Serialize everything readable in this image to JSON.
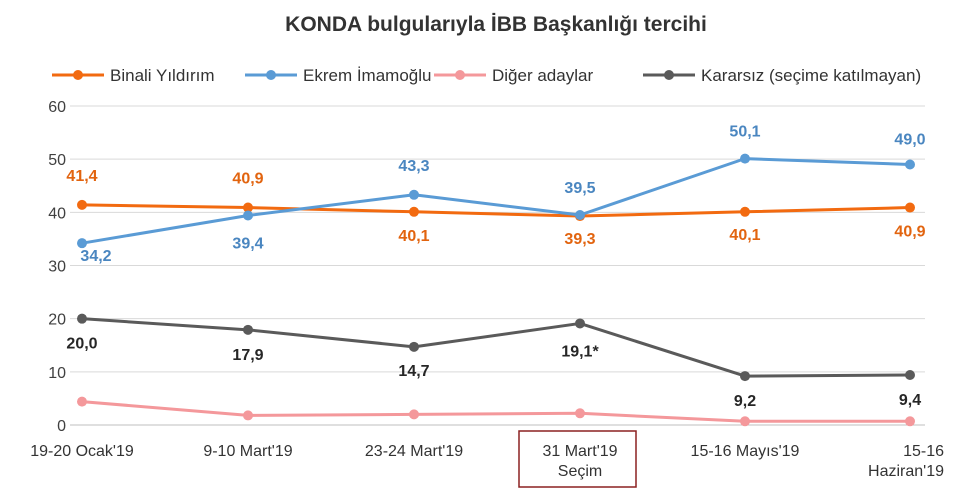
{
  "chart_data": {
    "type": "line",
    "title": "KONDA bulgularıyla İBB Başkanlığı tercihi",
    "categories": [
      [
        "19-20 Ocak'19"
      ],
      [
        "9-10 Mart'19"
      ],
      [
        "23-24 Mart'19"
      ],
      [
        "31 Mart'19",
        "Seçim"
      ],
      [
        "15-16 Mayıs'19"
      ],
      [
        "15-16",
        "Haziran'19"
      ]
    ],
    "highlighted_category_index": 3,
    "ylim": [
      0,
      60
    ],
    "yticks": [
      0,
      10,
      20,
      30,
      40,
      50,
      60
    ],
    "grid": true,
    "legend_position": "top",
    "series": [
      {
        "name": "Binali Yıldırım",
        "color": "#F26A10",
        "values": [
          41.4,
          40.9,
          40.1,
          39.3,
          40.1,
          40.9
        ],
        "labels": [
          "41,4",
          "40,9",
          "40,1",
          "39,3",
          "40,1",
          "40,9"
        ],
        "label_color": "#E2640F"
      },
      {
        "name": "Ekrem İmamoğlu",
        "color": "#5A9BD5",
        "values": [
          34.2,
          39.4,
          43.3,
          39.5,
          50.1,
          49.0
        ],
        "labels": [
          "34,2",
          "39,4",
          "43,3",
          "39,5",
          "50,1",
          "49,0"
        ],
        "label_color": "#4A86C0"
      },
      {
        "name": "Diğer adaylar",
        "color": "#F4989B",
        "values": [
          4.4,
          1.8,
          2.0,
          2.2,
          0.7,
          0.7
        ],
        "labels": []
      },
      {
        "name": "Kararsız (seçime katılmayan)",
        "color": "#5A5A5A",
        "values": [
          20.0,
          17.9,
          14.7,
          19.1,
          9.2,
          9.4
        ],
        "labels": [
          "20,0",
          "17,9",
          "14,7",
          "19,1*",
          "9,2",
          "9,4"
        ],
        "label_color": "#262626"
      }
    ]
  }
}
